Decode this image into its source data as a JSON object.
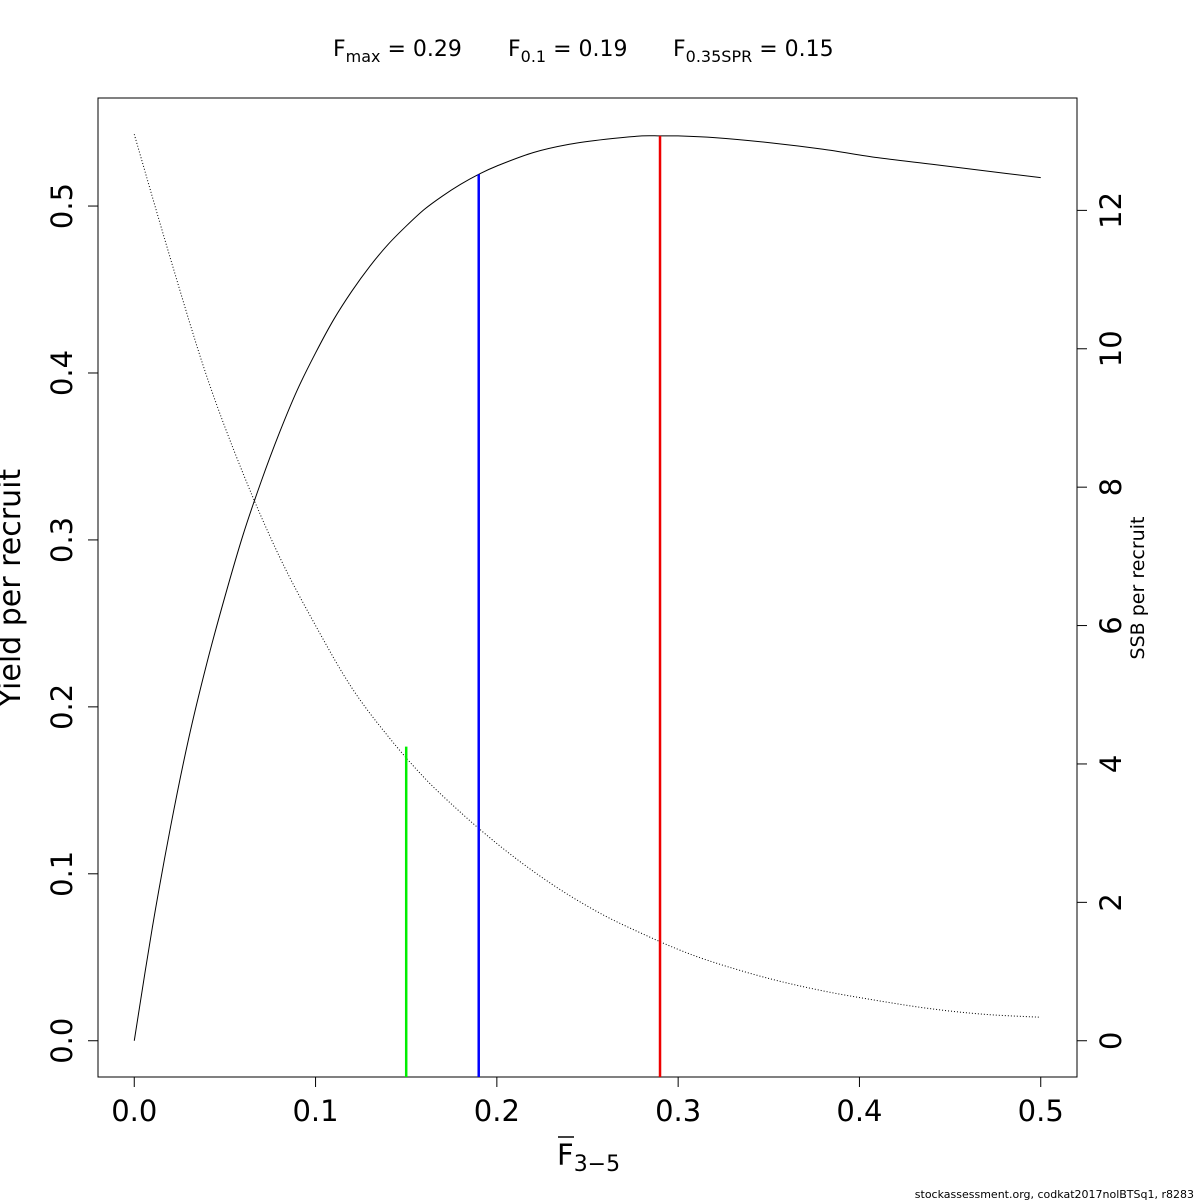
{
  "header": {
    "fmax": {
      "main": "F",
      "sub": "max",
      "rest": " = 0.29"
    },
    "f01": {
      "main": "F",
      "sub": "0.1",
      "rest": " = 0.19"
    },
    "fspr": {
      "main": "F",
      "sub": "0.35SPR",
      "rest": " = 0.15"
    }
  },
  "footer": {
    "credit": "stockassessment.org, codkat2017nolBTSq1, r8283"
  },
  "chart_data": {
    "type": "line",
    "xlabel": {
      "main": "F",
      "sub": "3−5"
    },
    "ylabel": "Yield per recruit",
    "y2label": "SSB per recruit",
    "xlim": [
      0,
      0.5
    ],
    "ylim": [
      0,
      0.543
    ],
    "y2lim": [
      0,
      13.1
    ],
    "x_ticks": [
      "0.0",
      "0.1",
      "0.2",
      "0.3",
      "0.4",
      "0.5"
    ],
    "y_ticks": [
      "0.0",
      "0.1",
      "0.2",
      "0.3",
      "0.4",
      "0.5"
    ],
    "y2_ticks": [
      "0",
      "2",
      "4",
      "6",
      "8",
      "10",
      "12"
    ],
    "series": [
      {
        "axis": "left",
        "style": "solid",
        "color": "#000000",
        "x": [
          0,
          0.01,
          0.02,
          0.03,
          0.04,
          0.05,
          0.06,
          0.07,
          0.08,
          0.09,
          0.1,
          0.11,
          0.12,
          0.13,
          0.14,
          0.15,
          0.16,
          0.17,
          0.18,
          0.19,
          0.2,
          0.22,
          0.24,
          0.26,
          0.28,
          0.29,
          0.3,
          0.32,
          0.35,
          0.38,
          0.41,
          0.44,
          0.47,
          0.5
        ],
        "y": [
          0,
          0.068,
          0.128,
          0.181,
          0.226,
          0.266,
          0.303,
          0.335,
          0.364,
          0.39,
          0.412,
          0.432,
          0.449,
          0.464,
          0.477,
          0.488,
          0.498,
          0.506,
          0.513,
          0.519,
          0.524,
          0.532,
          0.537,
          0.54,
          0.542,
          0.542,
          0.542,
          0.541,
          0.538,
          0.534,
          0.529,
          0.525,
          0.521,
          0.517
        ]
      },
      {
        "axis": "right",
        "style": "dotted",
        "color": "#000000",
        "x": [
          0,
          0.02,
          0.04,
          0.06,
          0.08,
          0.1,
          0.12,
          0.14,
          0.16,
          0.18,
          0.2,
          0.22,
          0.24,
          0.26,
          0.28,
          0.3,
          0.32,
          0.35,
          0.38,
          0.41,
          0.44,
          0.47,
          0.5
        ],
        "y": [
          13.1,
          11.3,
          9.6,
          8.2,
          7.0,
          6.0,
          5.1,
          4.4,
          3.8,
          3.3,
          2.85,
          2.45,
          2.1,
          1.8,
          1.55,
          1.32,
          1.13,
          0.9,
          0.72,
          0.58,
          0.46,
          0.38,
          0.34
        ]
      }
    ],
    "reference_lines": [
      {
        "label": "F0.35SPR",
        "x": 0.15,
        "y_top": 4.25,
        "axis": "right",
        "color": "#00ee00"
      },
      {
        "label": "F0.1",
        "x": 0.19,
        "y_top": 0.519,
        "axis": "left",
        "color": "#0000ff"
      },
      {
        "label": "Fmax",
        "x": 0.29,
        "y_top": 0.542,
        "axis": "left",
        "color": "#ee0000"
      }
    ]
  }
}
